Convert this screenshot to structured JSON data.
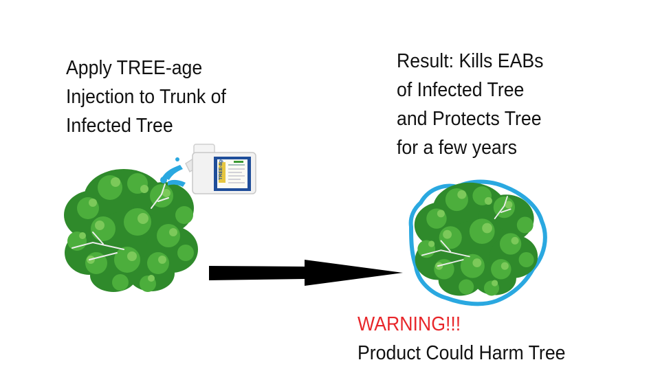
{
  "step1": {
    "lines": [
      "Apply TREE-age",
      "Injection to Trunk of",
      "Infected Tree"
    ]
  },
  "step2": {
    "lines": [
      "Result: Kills EABs",
      "of Infected Tree",
      "and Protects Tree",
      "for a few years"
    ]
  },
  "warning": {
    "title": "WARNING!!!",
    "text": "Product Could Harm Tree"
  },
  "product_label": "TREE-äge",
  "colors": {
    "text": "#111111",
    "warning": "#e8262a",
    "tree": "#3a9a32",
    "tree_light": "#6cc04a",
    "outline": "#2aa8e0",
    "arrow": "#000000",
    "bottle_label": "#1f4e9a"
  },
  "icons": [
    "tree-icon",
    "treated-tree-icon",
    "product-bottle-icon",
    "spray-icon",
    "arrow-right-icon",
    "blue-protection-outline"
  ]
}
